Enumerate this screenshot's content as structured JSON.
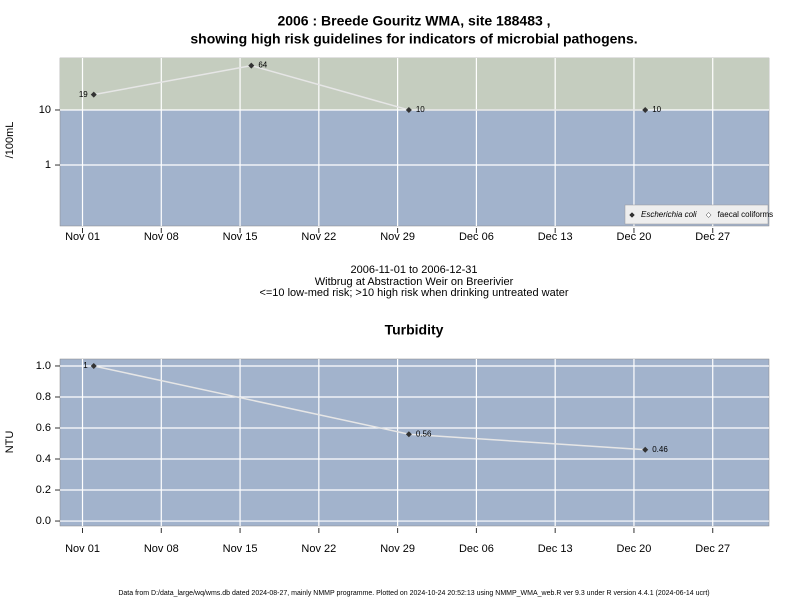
{
  "chart_data": [
    {
      "type": "line",
      "scale": "log",
      "title": "2006 : Breede Gouritz WMA, site 188483 ,",
      "subtitle": "showing high risk guidelines for indicators of microbial pathogens.",
      "ylabel": "/100mL",
      "caption": [
        "2006-11-01 to 2006-12-31",
        "Witbrug at Abstraction Weir on Breerivier",
        "<=10 low-med risk; >10 high risk when drinking untreated water"
      ],
      "x": [
        "Nov 02",
        "Nov 16",
        "Nov 30",
        "Dec 21"
      ],
      "series": [
        {
          "name": "Escherichia coli",
          "color": "#333333",
          "values": [
            19,
            64,
            10,
            10
          ],
          "value_labels": [
            "19",
            "64",
            "10",
            "10"
          ]
        },
        {
          "name": "faecal coliforms",
          "color": "#ffffff",
          "values": [
            null,
            null,
            null,
            null
          ]
        }
      ],
      "xlim": [
        "Oct 30",
        "Jan 01"
      ],
      "xticks": [
        "Nov 01",
        "Nov 08",
        "Nov 15",
        "Nov 22",
        "Nov 29",
        "Dec 06",
        "Dec 13",
        "Dec 20",
        "Dec 27"
      ],
      "ylim": [
        0.078,
        88
      ],
      "yticks": [
        1,
        10
      ],
      "threshold": 10,
      "threshold_color": "#c5cdbf",
      "background": "#a2b3cc",
      "grid": true,
      "legend": "bottom-right"
    },
    {
      "type": "line",
      "scale": "linear",
      "title": "Turbidity",
      "ylabel": "NTU",
      "x": [
        "Nov 02",
        "Nov 30",
        "Dec 21"
      ],
      "series": [
        {
          "name": "Turbidity",
          "color": "#333333",
          "values": [
            1,
            0.56,
            0.46
          ],
          "value_labels": [
            "1",
            "0.56",
            "0.46"
          ]
        }
      ],
      "xlim": [
        "Oct 30",
        "Jan 01"
      ],
      "xticks": [
        "Nov 01",
        "Nov 08",
        "Nov 15",
        "Nov 22",
        "Nov 29",
        "Dec 06",
        "Dec 13",
        "Dec 20",
        "Dec 27"
      ],
      "ylim": [
        -0.032,
        1.045
      ],
      "yticks": [
        {
          "value": 0,
          "label": "0.0"
        },
        0.2,
        0.4,
        0.6,
        0.8,
        {
          "value": 1,
          "label": "1.0"
        }
      ],
      "background": "#a2b3cc",
      "grid": true
    }
  ],
  "footer": "Data from D:/data_large/wq/wms.db dated 2024-08-27, mainly NMMP programme. Plotted on 2024-10-24 20:52:13 using NMMP_WMA_web.R ver 9.3 under R version 4.4.1 (2024-06-14 ucrt)"
}
